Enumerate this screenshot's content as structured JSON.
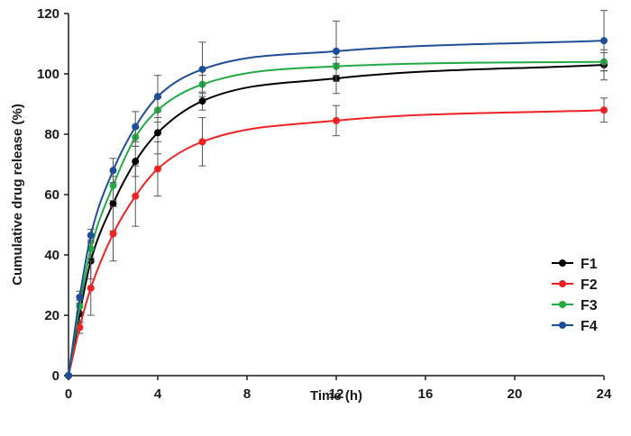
{
  "chart_data": {
    "type": "line",
    "title": "",
    "xlabel": "Time (h)",
    "ylabel": "Cumulative drug release (%)",
    "xlim": [
      0,
      24
    ],
    "ylim": [
      0,
      120
    ],
    "xticks": [
      0,
      4,
      8,
      12,
      16,
      20,
      24
    ],
    "yticks": [
      0,
      20,
      40,
      60,
      80,
      100,
      120
    ],
    "grid": false,
    "legend_position": "right",
    "x": [
      0,
      0.5,
      1,
      2,
      3,
      4,
      6,
      12,
      24
    ],
    "series": [
      {
        "name": "F1",
        "color": "#000000",
        "values": [
          0,
          20.5,
          38,
          57,
          71,
          80.5,
          91,
          98.5,
          103
        ],
        "errors": [
          0,
          3,
          6,
          9,
          5,
          7,
          3,
          5,
          5
        ]
      },
      {
        "name": "F2",
        "color": "#ee2222",
        "values": [
          0,
          16,
          29,
          47,
          59.5,
          68.5,
          77.5,
          84.5,
          88
        ],
        "errors": [
          0,
          2,
          9,
          9,
          10,
          9,
          8,
          5,
          4
        ]
      },
      {
        "name": "F3",
        "color": "#22aa44",
        "values": [
          0,
          23,
          42,
          63,
          79,
          88,
          96.5,
          102.5,
          104
        ],
        "errors": [
          0,
          2,
          3,
          5,
          3,
          4,
          3,
          3,
          3
        ]
      },
      {
        "name": "F4",
        "color": "#1f4e99",
        "values": [
          0,
          26,
          46.5,
          68,
          82.5,
          92.5,
          101.5,
          107.5,
          111
        ],
        "errors": [
          0,
          2,
          2,
          4,
          5,
          7,
          9,
          10,
          10
        ]
      }
    ]
  }
}
